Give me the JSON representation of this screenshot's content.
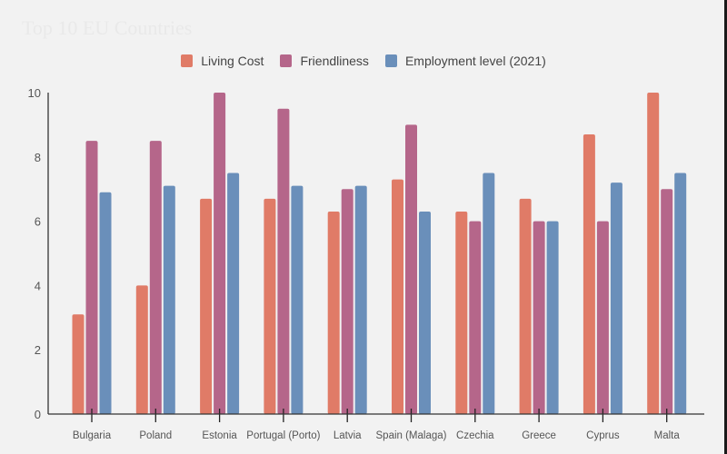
{
  "chart_data": {
    "type": "bar",
    "title": "Top 10 EU Countries",
    "xlabel": "",
    "ylabel": "",
    "ylim": [
      0,
      10
    ],
    "yticks": [
      0,
      2,
      4,
      6,
      8,
      10
    ],
    "grid": false,
    "legend_position": "top-center",
    "categories": [
      "Bulgaria",
      "Poland",
      "Estonia",
      "Portugal (Porto)",
      "Latvia",
      "Spain (Malaga)",
      "Czechia",
      "Greece",
      "Cyprus",
      "Malta"
    ],
    "series": [
      {
        "name": "Living Cost",
        "color": "#e07b67",
        "values": [
          3.1,
          4.0,
          6.7,
          6.7,
          6.3,
          7.3,
          6.3,
          6.7,
          8.7,
          10
        ]
      },
      {
        "name": "Friendliness",
        "color": "#b5668a",
        "values": [
          8.5,
          8.5,
          10,
          9.5,
          7.0,
          9.0,
          6.0,
          6.0,
          6.0,
          7.0
        ]
      },
      {
        "name": "Employment level (2021)",
        "color": "#6a8fba",
        "values": [
          6.9,
          7.1,
          7.5,
          7.1,
          7.1,
          6.3,
          7.5,
          6.0,
          7.2,
          7.5
        ]
      }
    ]
  }
}
